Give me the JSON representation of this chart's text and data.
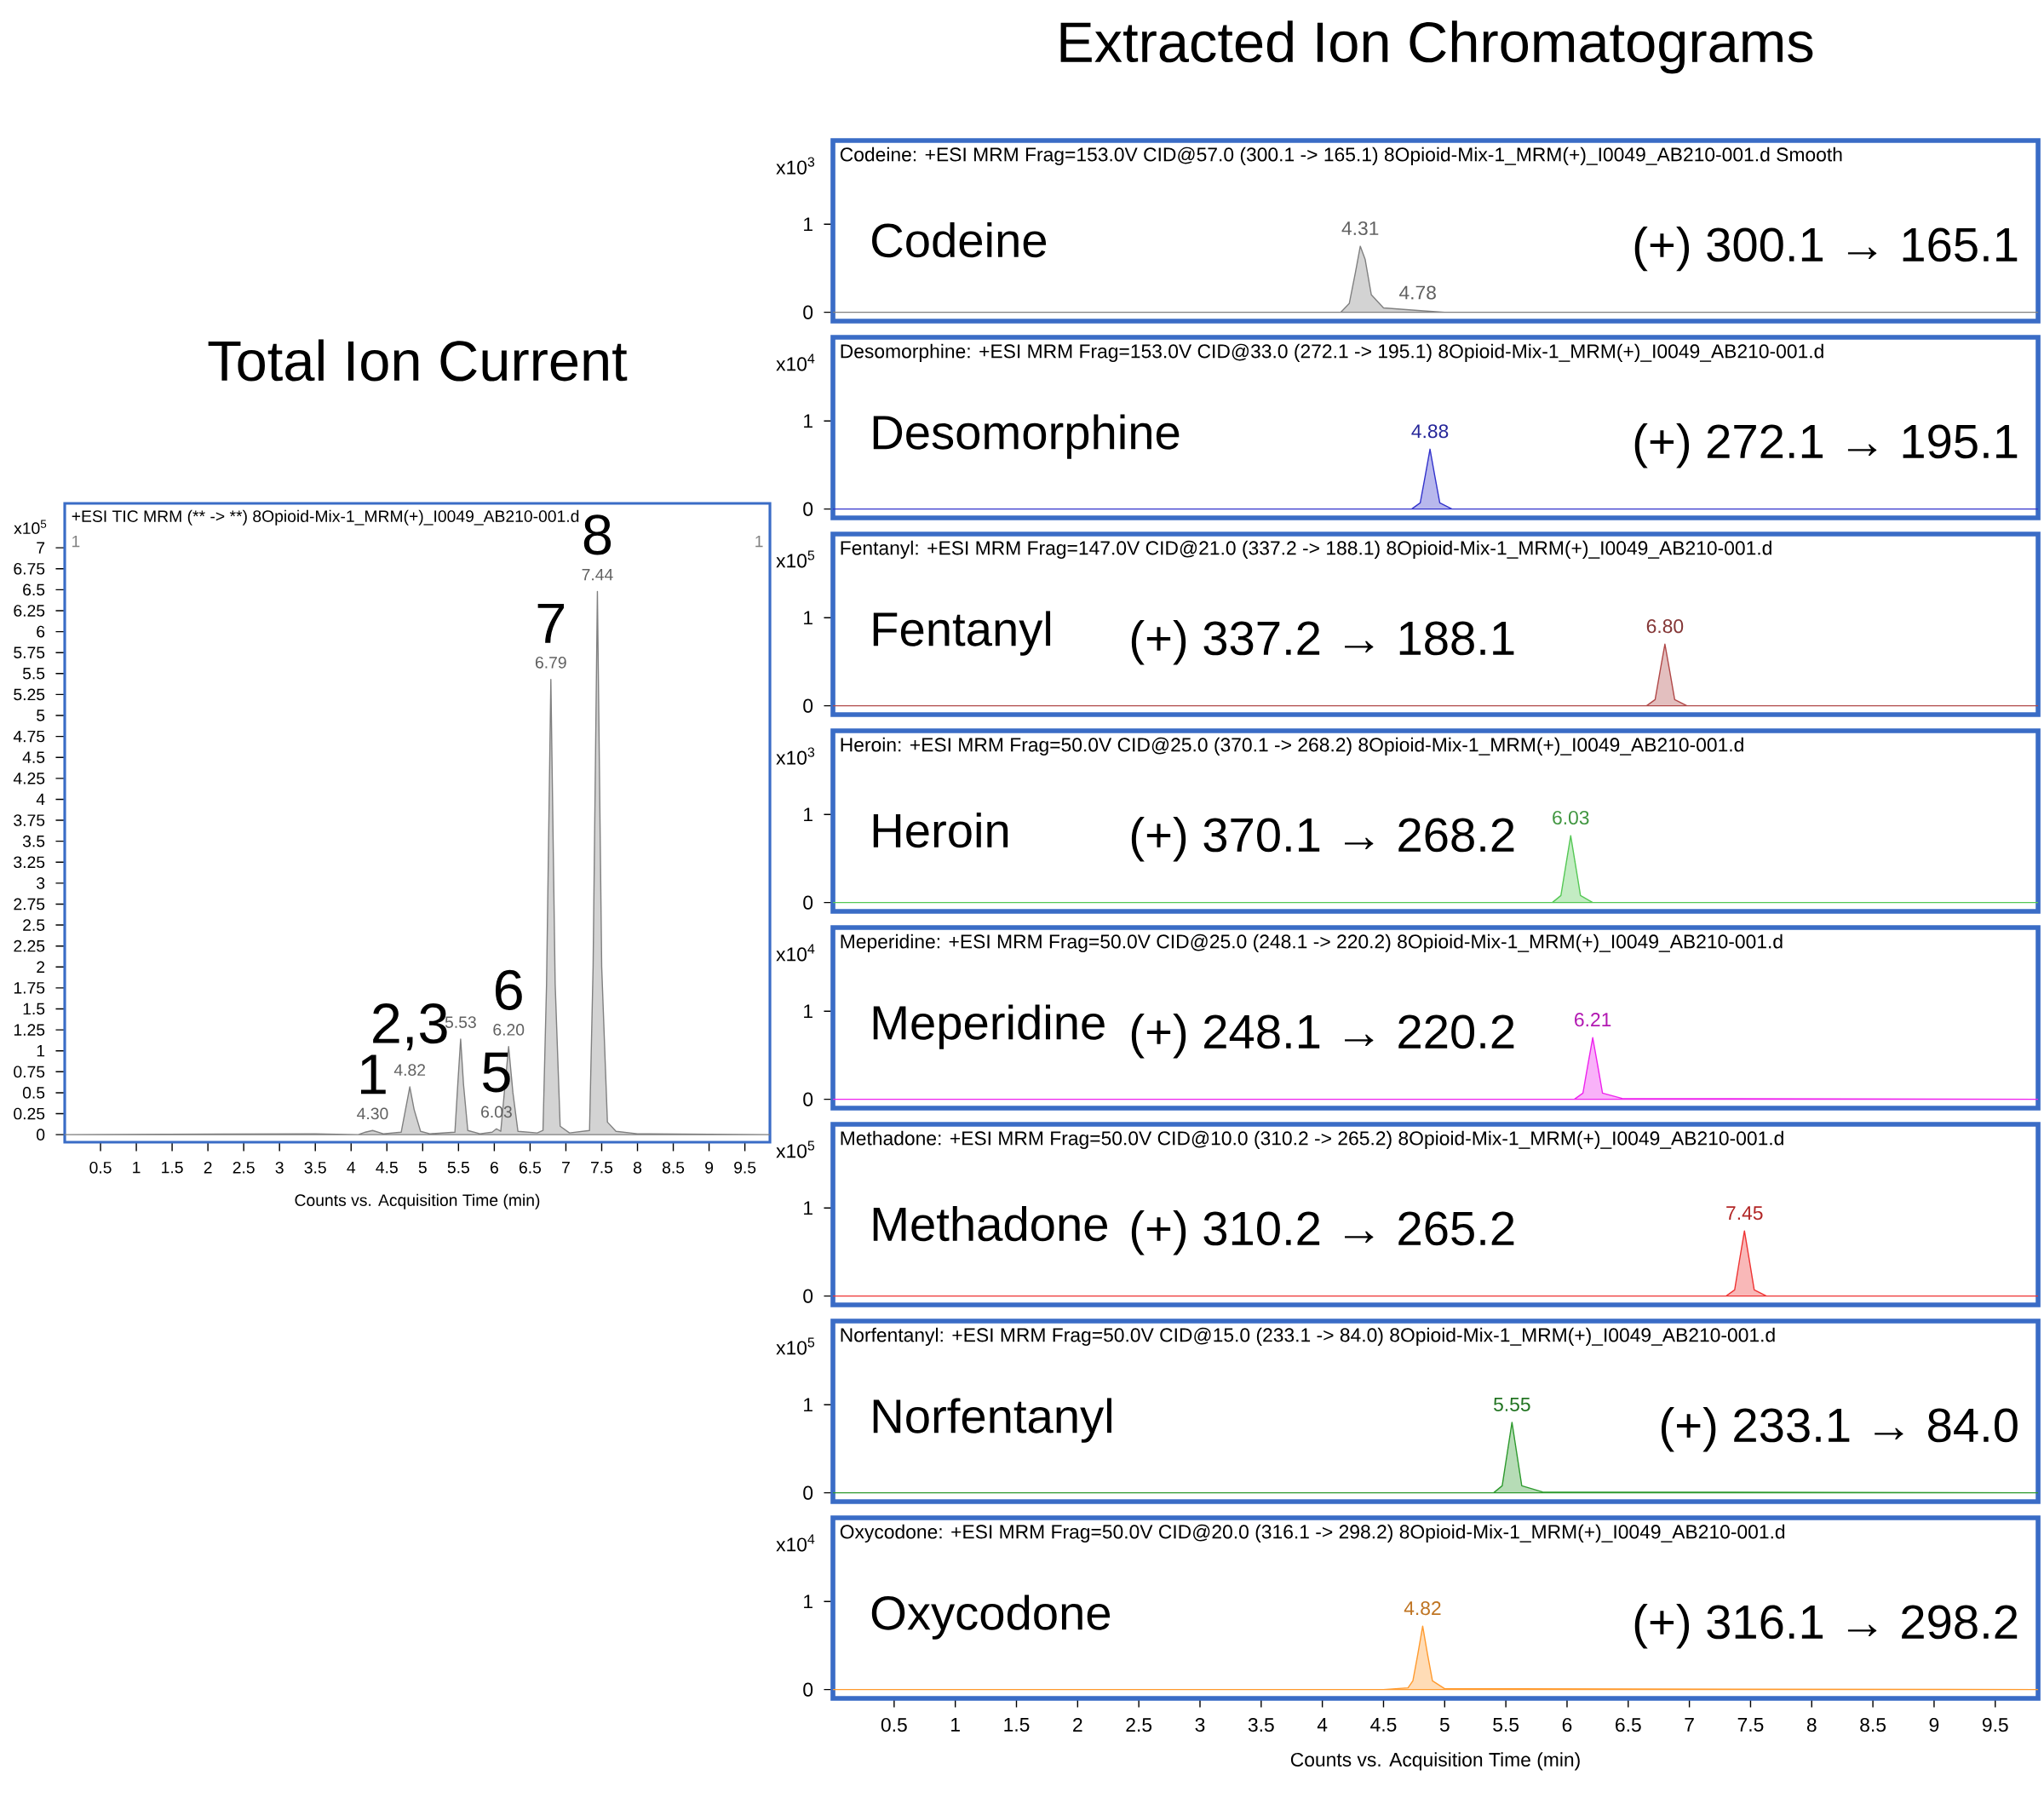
{
  "chart_data": [
    {
      "type": "area",
      "title": "Total Ion Current",
      "subtitle": "+ESI TIC MRM (** -> **) 8Opioid-Mix-1_MRM(+)_I0049_AB210-001.d",
      "xlabel": "Counts vs. Acquisition Time (min)",
      "ylabel": "x10$^{5}$",
      "xlim": [
        0,
        9.85
      ],
      "ylim": [
        -0.09,
        7.53
      ],
      "xticks": [
        0.5,
        1,
        1.5,
        2,
        2.5,
        3,
        3.5,
        4,
        4.5,
        5,
        5.5,
        6,
        6.5,
        7,
        7.5,
        8,
        8.5,
        9,
        9.5
      ],
      "yticks": [
        0,
        0.25,
        0.5,
        0.75,
        1,
        1.25,
        1.5,
        1.75,
        2,
        2.25,
        2.5,
        2.75,
        3,
        3.25,
        3.5,
        3.75,
        4,
        4.25,
        4.5,
        4.75,
        5,
        5.25,
        5.5,
        5.75,
        6,
        6.25,
        6.5,
        6.75,
        7
      ],
      "series": [
        {
          "color": "#808080",
          "x": [
            0,
            3.5,
            4.1,
            4.2,
            4.3,
            4.45,
            4.7,
            4.76,
            4.82,
            4.88,
            4.97,
            5.1,
            5.45,
            5.49,
            5.53,
            5.57,
            5.63,
            5.8,
            5.97,
            6.03,
            6.09,
            6.14,
            6.2,
            6.26,
            6.33,
            6.6,
            6.68,
            6.73,
            6.79,
            6.85,
            6.92,
            7.05,
            7.33,
            7.38,
            7.44,
            7.5,
            7.58,
            7.7,
            8.0,
            9.85
          ],
          "values": [
            0,
            0.01,
            0,
            0.03,
            0.05,
            0.01,
            0.03,
            0.3,
            0.57,
            0.3,
            0.04,
            0.01,
            0.03,
            0.6,
            1.14,
            0.6,
            0.05,
            0.01,
            0.03,
            0.07,
            0.04,
            0.5,
            1.05,
            0.5,
            0.04,
            0.02,
            0.05,
            1.8,
            5.43,
            1.8,
            0.1,
            0.02,
            0.05,
            2.0,
            6.48,
            2.0,
            0.15,
            0.04,
            0.01,
            0
          ]
        }
      ],
      "annotations": [
        "1",
        "1",
        {
          "text": "4.30",
          "x": 4.3,
          "y": 0.05
        },
        {
          "text": "4.82",
          "x": 4.82,
          "y": 0.57
        },
        {
          "text": "5.53",
          "x": 5.53,
          "y": 1.14
        },
        {
          "text": "6.03",
          "x": 6.03,
          "y": 0.07
        },
        {
          "text": "6.20",
          "x": 6.2,
          "y": 1.05
        },
        {
          "text": "6.79",
          "x": 6.79,
          "y": 5.43
        },
        {
          "text": "7.44",
          "x": 7.44,
          "y": 6.48
        },
        {
          "text": "1",
          "x": 4.3,
          "y": 0.05
        },
        {
          "text": "2,3",
          "x": 4.82,
          "y": 0.57
        },
        {
          "text": "5",
          "x": 6.03,
          "y": 0.07
        },
        {
          "text": "6",
          "x": 6.2,
          "y": 1.05
        },
        {
          "text": "7",
          "x": 6.79,
          "y": 5.43
        },
        {
          "text": "8",
          "x": 7.44,
          "y": 6.48
        }
      ]
    },
    {
      "type": "area",
      "title": "Extracted Ion Chromatograms",
      "subtitle": "Codeine: +ESI MRM Frag=153.0V CID@57.0 (300.1 -> 165.1) 8Opioid-Mix-1_MRM(+)_I0049_AB210-001.d  Smooth",
      "ylabel": "x10$^{3}$",
      "xlim": [
        0,
        9.85
      ],
      "ylim": [
        -0.1,
        1.95
      ],
      "xticks": [
        0.5,
        1,
        1.5,
        2,
        2.5,
        3,
        3.5,
        4,
        4.5,
        5,
        5.5,
        6,
        6.5,
        7,
        7.5,
        8,
        8.5,
        9,
        9.5
      ],
      "yticks": [
        0,
        1
      ],
      "tick_labels": "y",
      "series": [
        {
          "color": "#808080",
          "x": [
            0,
            4.15,
            4.22,
            4.27,
            4.31,
            4.35,
            4.4,
            4.5,
            4.78,
            5.0,
            9.85
          ],
          "values": [
            0,
            0,
            0.1,
            0.45,
            0.75,
            0.6,
            0.2,
            0.05,
            0.02,
            0,
            0
          ]
        }
      ],
      "annotations": [
        "Codeine",
        "(+) 300.1 → 165.1",
        {
          "text": "4.31",
          "x": 4.31,
          "y": 0.75
        },
        {
          "text": "4.78",
          "x": 4.78,
          "y": 0.02
        }
      ]
    },
    {
      "type": "area",
      "subtitle": "Desomorphine: +ESI MRM Frag=153.0V CID@33.0 (272.1 -> 195.1) 8Opioid-Mix-1_MRM(+)_I0049_AB210-001.d",
      "ylabel": "x10$^{4}$",
      "xlim": [
        0,
        9.85
      ],
      "ylim": [
        -0.1,
        1.95
      ],
      "xticks": [
        0.5,
        1,
        1.5,
        2,
        2.5,
        3,
        3.5,
        4,
        4.5,
        5,
        5.5,
        6,
        6.5,
        7,
        7.5,
        8,
        8.5,
        9,
        9.5
      ],
      "yticks": [
        0,
        1
      ],
      "tick_labels": "y",
      "series": [
        {
          "color": "#3333cc",
          "x": [
            0,
            4.73,
            4.8,
            4.84,
            4.88,
            4.92,
            4.96,
            5.06,
            9.85
          ],
          "values": [
            0,
            0,
            0.07,
            0.37,
            0.68,
            0.37,
            0.07,
            0,
            0
          ]
        }
      ],
      "annotations": [
        "Desomorphine",
        "(+) 272.1 → 195.1",
        {
          "text": "4.88",
          "x": 4.88,
          "y": 0.68
        }
      ]
    },
    {
      "type": "area",
      "subtitle": "Fentanyl: +ESI MRM Frag=147.0V CID@21.0 (337.2 -> 188.1) 8Opioid-Mix-1_MRM(+)_I0049_AB210-001.d",
      "ylabel": "x10$^{5}$",
      "xlim": [
        0,
        9.85
      ],
      "ylim": [
        -0.1,
        1.95
      ],
      "xticks": [
        0.5,
        1,
        1.5,
        2,
        2.5,
        3,
        3.5,
        4,
        4.5,
        5,
        5.5,
        6,
        6.5,
        7,
        7.5,
        8,
        8.5,
        9,
        9.5
      ],
      "yticks": [
        0,
        1
      ],
      "tick_labels": "y",
      "series": [
        {
          "color": "#b04848",
          "x": [
            0,
            6.65,
            6.72,
            6.76,
            6.8,
            6.84,
            6.88,
            6.98,
            9.85
          ],
          "values": [
            0,
            0,
            0.07,
            0.39,
            0.7,
            0.39,
            0.07,
            0,
            0
          ]
        }
      ],
      "annotations": [
        "Fentanyl",
        "(+) 337.2 → 188.1",
        {
          "text": "6.80",
          "x": 6.8,
          "y": 0.7
        }
      ]
    },
    {
      "type": "area",
      "subtitle": "Heroin: +ESI MRM Frag=50.0V CID@25.0 (370.1 -> 268.2) 8Opioid-Mix-1_MRM(+)_I0049_AB210-001.d",
      "ylabel": "x10$^{3}$",
      "xlim": [
        0,
        9.85
      ],
      "ylim": [
        -0.1,
        1.95
      ],
      "xticks": [
        0.5,
        1,
        1.5,
        2,
        2.5,
        3,
        3.5,
        4,
        4.5,
        5,
        5.5,
        6,
        6.5,
        7,
        7.5,
        8,
        8.5,
        9,
        9.5
      ],
      "yticks": [
        0,
        1
      ],
      "tick_labels": "y",
      "series": [
        {
          "color": "#55c855",
          "x": [
            0,
            5.88,
            5.95,
            5.99,
            6.03,
            6.07,
            6.11,
            6.21,
            9.85
          ],
          "values": [
            0,
            0,
            0.08,
            0.42,
            0.76,
            0.42,
            0.08,
            0,
            0
          ]
        }
      ],
      "annotations": [
        "Heroin",
        "(+) 370.1 → 268.2",
        {
          "text": "6.03",
          "x": 6.03,
          "y": 0.76
        }
      ]
    },
    {
      "type": "area",
      "subtitle": "Meperidine: +ESI MRM Frag=50.0V CID@25.0 (248.1 -> 220.2) 8Opioid-Mix-1_MRM(+)_I0049_AB210-001.d",
      "ylabel": "x10$^{4}$",
      "xlim": [
        0,
        9.85
      ],
      "ylim": [
        -0.1,
        1.95
      ],
      "xticks": [
        0.5,
        1,
        1.5,
        2,
        2.5,
        3,
        3.5,
        4,
        4.5,
        5,
        5.5,
        6,
        6.5,
        7,
        7.5,
        8,
        8.5,
        9,
        9.5
      ],
      "yticks": [
        0,
        1
      ],
      "tick_labels": "y",
      "series": [
        {
          "color": "#ee22ee",
          "x": [
            0,
            6.06,
            6.13,
            6.17,
            6.21,
            6.25,
            6.29,
            6.45,
            9.85
          ],
          "values": [
            0,
            0,
            0.07,
            0.39,
            0.7,
            0.39,
            0.07,
            0.01,
            0
          ]
        }
      ],
      "annotations": [
        "Meperidine",
        "(+) 248.1 → 220.2",
        {
          "text": "6.21",
          "x": 6.21,
          "y": 0.7
        }
      ]
    },
    {
      "type": "area",
      "subtitle": "Methadone: +ESI MRM Frag=50.0V CID@10.0 (310.2 -> 265.2) 8Opioid-Mix-1_MRM(+)_I0049_AB210-001.d",
      "ylabel": "x10$^{5}$",
      "xlim": [
        0,
        9.85
      ],
      "ylim": [
        -0.1,
        1.95
      ],
      "xticks": [
        0.5,
        1,
        1.5,
        2,
        2.5,
        3,
        3.5,
        4,
        4.5,
        5,
        5.5,
        6,
        6.5,
        7,
        7.5,
        8,
        8.5,
        9,
        9.5
      ],
      "yticks": [
        0,
        1
      ],
      "tick_labels": "y",
      "series": [
        {
          "color": "#ee3333",
          "x": [
            0,
            7.3,
            7.37,
            7.41,
            7.45,
            7.49,
            7.53,
            7.63,
            9.85
          ],
          "values": [
            0,
            0,
            0.07,
            0.41,
            0.74,
            0.41,
            0.07,
            0,
            0
          ]
        }
      ],
      "annotations": [
        "Methadone",
        "(+) 310.2 → 265.2",
        {
          "text": "7.45",
          "x": 7.45,
          "y": 0.74
        }
      ]
    },
    {
      "type": "area",
      "subtitle": "Norfentanyl: +ESI MRM Frag=50.0V CID@15.0 (233.1 -> 84.0) 8Opioid-Mix-1_MRM(+)_I0049_AB210-001.d",
      "ylabel": "x10$^{5}$",
      "xlim": [
        0,
        9.85
      ],
      "ylim": [
        -0.1,
        1.95
      ],
      "xticks": [
        0.5,
        1,
        1.5,
        2,
        2.5,
        3,
        3.5,
        4,
        4.5,
        5,
        5.5,
        6,
        6.5,
        7,
        7.5,
        8,
        8.5,
        9,
        9.5
      ],
      "yticks": [
        0,
        1
      ],
      "tick_labels": "y",
      "series": [
        {
          "color": "#2e9a2e",
          "x": [
            0,
            5.4,
            5.47,
            5.51,
            5.55,
            5.59,
            5.63,
            5.8,
            9.85
          ],
          "values": [
            0,
            0,
            0.08,
            0.44,
            0.8,
            0.44,
            0.08,
            0.01,
            0
          ]
        }
      ],
      "annotations": [
        "Norfentanyl",
        "(+) 233.1 → 84.0",
        {
          "text": "5.55",
          "x": 5.55,
          "y": 0.8
        }
      ]
    },
    {
      "type": "area",
      "subtitle": "Oxycodone: +ESI MRM Frag=50.0V CID@20.0 (316.1 -> 298.2) 8Opioid-Mix-1_MRM(+)_I0049_AB210-001.d",
      "xlabel": "Counts vs. Acquisition Time (min)",
      "ylabel": "x10$^{4}$",
      "xlim": [
        0,
        9.85
      ],
      "ylim": [
        -0.1,
        1.95
      ],
      "xticks": [
        0.5,
        1,
        1.5,
        2,
        2.5,
        3,
        3.5,
        4,
        4.5,
        5,
        5.5,
        6,
        6.5,
        7,
        7.5,
        8,
        8.5,
        9,
        9.5
      ],
      "yticks": [
        0,
        1
      ],
      "series": [
        {
          "color": "#ff9a2e",
          "x": [
            0,
            4.5,
            4.7,
            4.74,
            4.78,
            4.82,
            4.86,
            4.9,
            5.0,
            9.85
          ],
          "values": [
            0,
            0,
            0.02,
            0.1,
            0.4,
            0.72,
            0.4,
            0.1,
            0.01,
            0
          ]
        }
      ],
      "annotations": [
        "Oxycodone",
        "(+) 316.1 → 298.2",
        {
          "text": "4.82",
          "x": 4.82,
          "y": 0.72
        }
      ]
    }
  ]
}
